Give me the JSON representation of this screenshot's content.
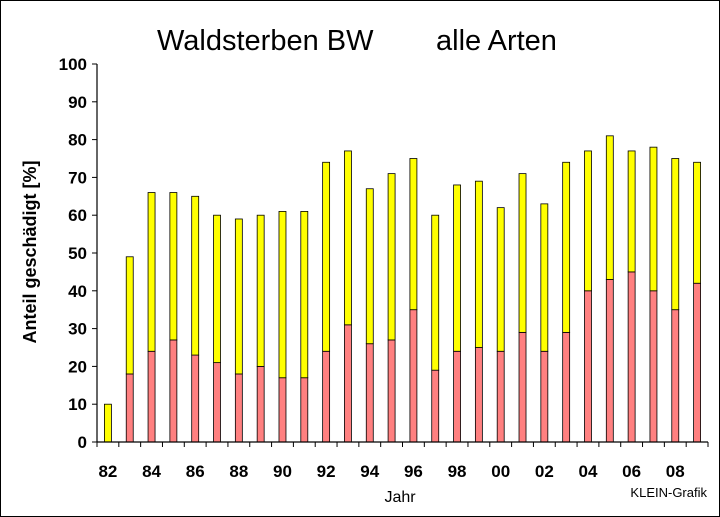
{
  "chart_data": {
    "type": "bar",
    "stacked": true,
    "title_left": "Waldsterben BW",
    "title_right": "alle Arten",
    "ylabel": "Anteil geschädigt [%]",
    "xlabel": "Jahr",
    "credit": "KLEIN-Grafik",
    "ylim": [
      0,
      100
    ],
    "ytick_step": 10,
    "grid": false,
    "x_tick_labels": [
      "82",
      "84",
      "86",
      "88",
      "90",
      "92",
      "94",
      "96",
      "98",
      "00",
      "02",
      "04",
      "06",
      "08"
    ],
    "categories": [
      "82",
      "83",
      "84",
      "85",
      "86",
      "87",
      "88",
      "89",
      "90",
      "91",
      "92",
      "93",
      "94",
      "95",
      "96",
      "97",
      "98",
      "99",
      "00",
      "01",
      "02",
      "03",
      "04",
      "05",
      "06",
      "07",
      "08",
      "09"
    ],
    "series": [
      {
        "color": "#ff8080",
        "values": [
          0,
          18,
          24,
          27,
          23,
          21,
          18,
          20,
          17,
          17,
          24,
          31,
          26,
          27,
          35,
          19,
          24,
          25,
          24,
          29,
          24,
          29,
          40,
          43,
          45,
          40,
          35,
          42
        ]
      },
      {
        "color": "#ffff00",
        "values": [
          10,
          31,
          42,
          39,
          42,
          39,
          41,
          40,
          44,
          44,
          50,
          46,
          41,
          44,
          40,
          41,
          44,
          44,
          38,
          42,
          39,
          45,
          37,
          38,
          32,
          38,
          40,
          32
        ]
      }
    ]
  }
}
